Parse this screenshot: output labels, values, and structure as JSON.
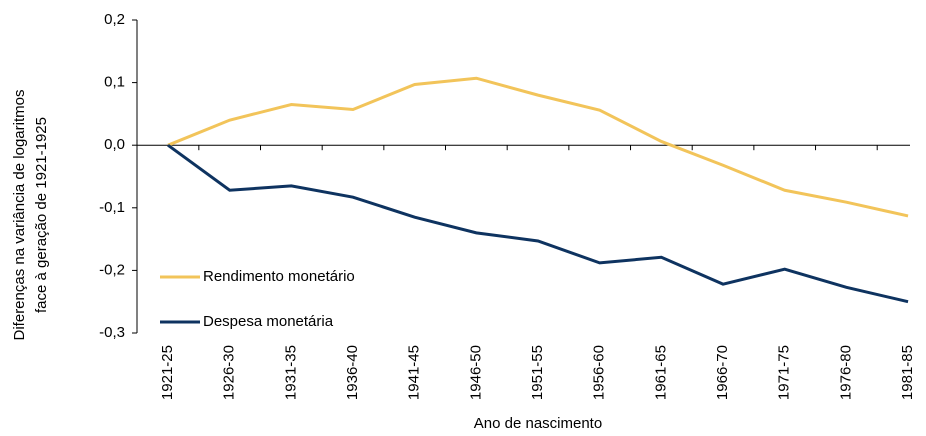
{
  "chart_data": {
    "type": "line",
    "ylabel": [
      "Diferenças na variância de logaritmos",
      "face à geração de 1921-1925"
    ],
    "xlabel": "Ano de nascimento",
    "categories": [
      "1921-25",
      "1926-30",
      "1931-35",
      "1936-40",
      "1941-45",
      "1946-50",
      "1951-55",
      "1956-60",
      "1961-65",
      "1966-70",
      "1971-75",
      "1976-80",
      "1981-85"
    ],
    "series": [
      {
        "name": "Rendimento monetário",
        "color": "#f2c45a",
        "values": [
          0,
          0.04,
          0.065,
          0.057,
          0.097,
          0.107,
          0.08,
          0.056,
          0.006,
          -0.032,
          -0.072,
          -0.091,
          -0.113
        ]
      },
      {
        "name": "Despesa monetária",
        "color": "#0e3360",
        "values": [
          0,
          -0.072,
          -0.065,
          -0.083,
          -0.115,
          -0.14,
          -0.153,
          -0.188,
          -0.179,
          -0.222,
          -0.198,
          -0.227,
          -0.25
        ]
      }
    ],
    "ylim": [
      -0.3,
      0.2
    ],
    "yticks": [
      {
        "value": -0.3,
        "label": "-0,3"
      },
      {
        "value": -0.2,
        "label": "-0,2"
      },
      {
        "value": -0.1,
        "label": "-0,1"
      },
      {
        "value": 0,
        "label": "0,0"
      },
      {
        "value": 0.1,
        "label": "0,1"
      },
      {
        "value": 0.2,
        "label": "0,2"
      }
    ],
    "grid": false,
    "legend": "lower left"
  }
}
